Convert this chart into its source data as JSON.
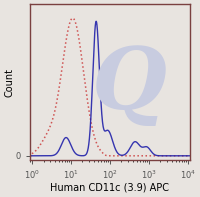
{
  "title": "",
  "xlabel": "Human CD11c (3.9) APC",
  "ylabel": "Count",
  "background_color": "#e8e4e0",
  "plot_bg_color": "#e8e4e0",
  "solid_line_color": "#2222aa",
  "dashed_line_color": "#cc4444",
  "watermark_color": "#c8cce0",
  "frame_color": "#7a4040",
  "xlabel_fontsize": 7.0,
  "ylabel_fontsize": 7.0,
  "tick_fontsize": 6.0
}
